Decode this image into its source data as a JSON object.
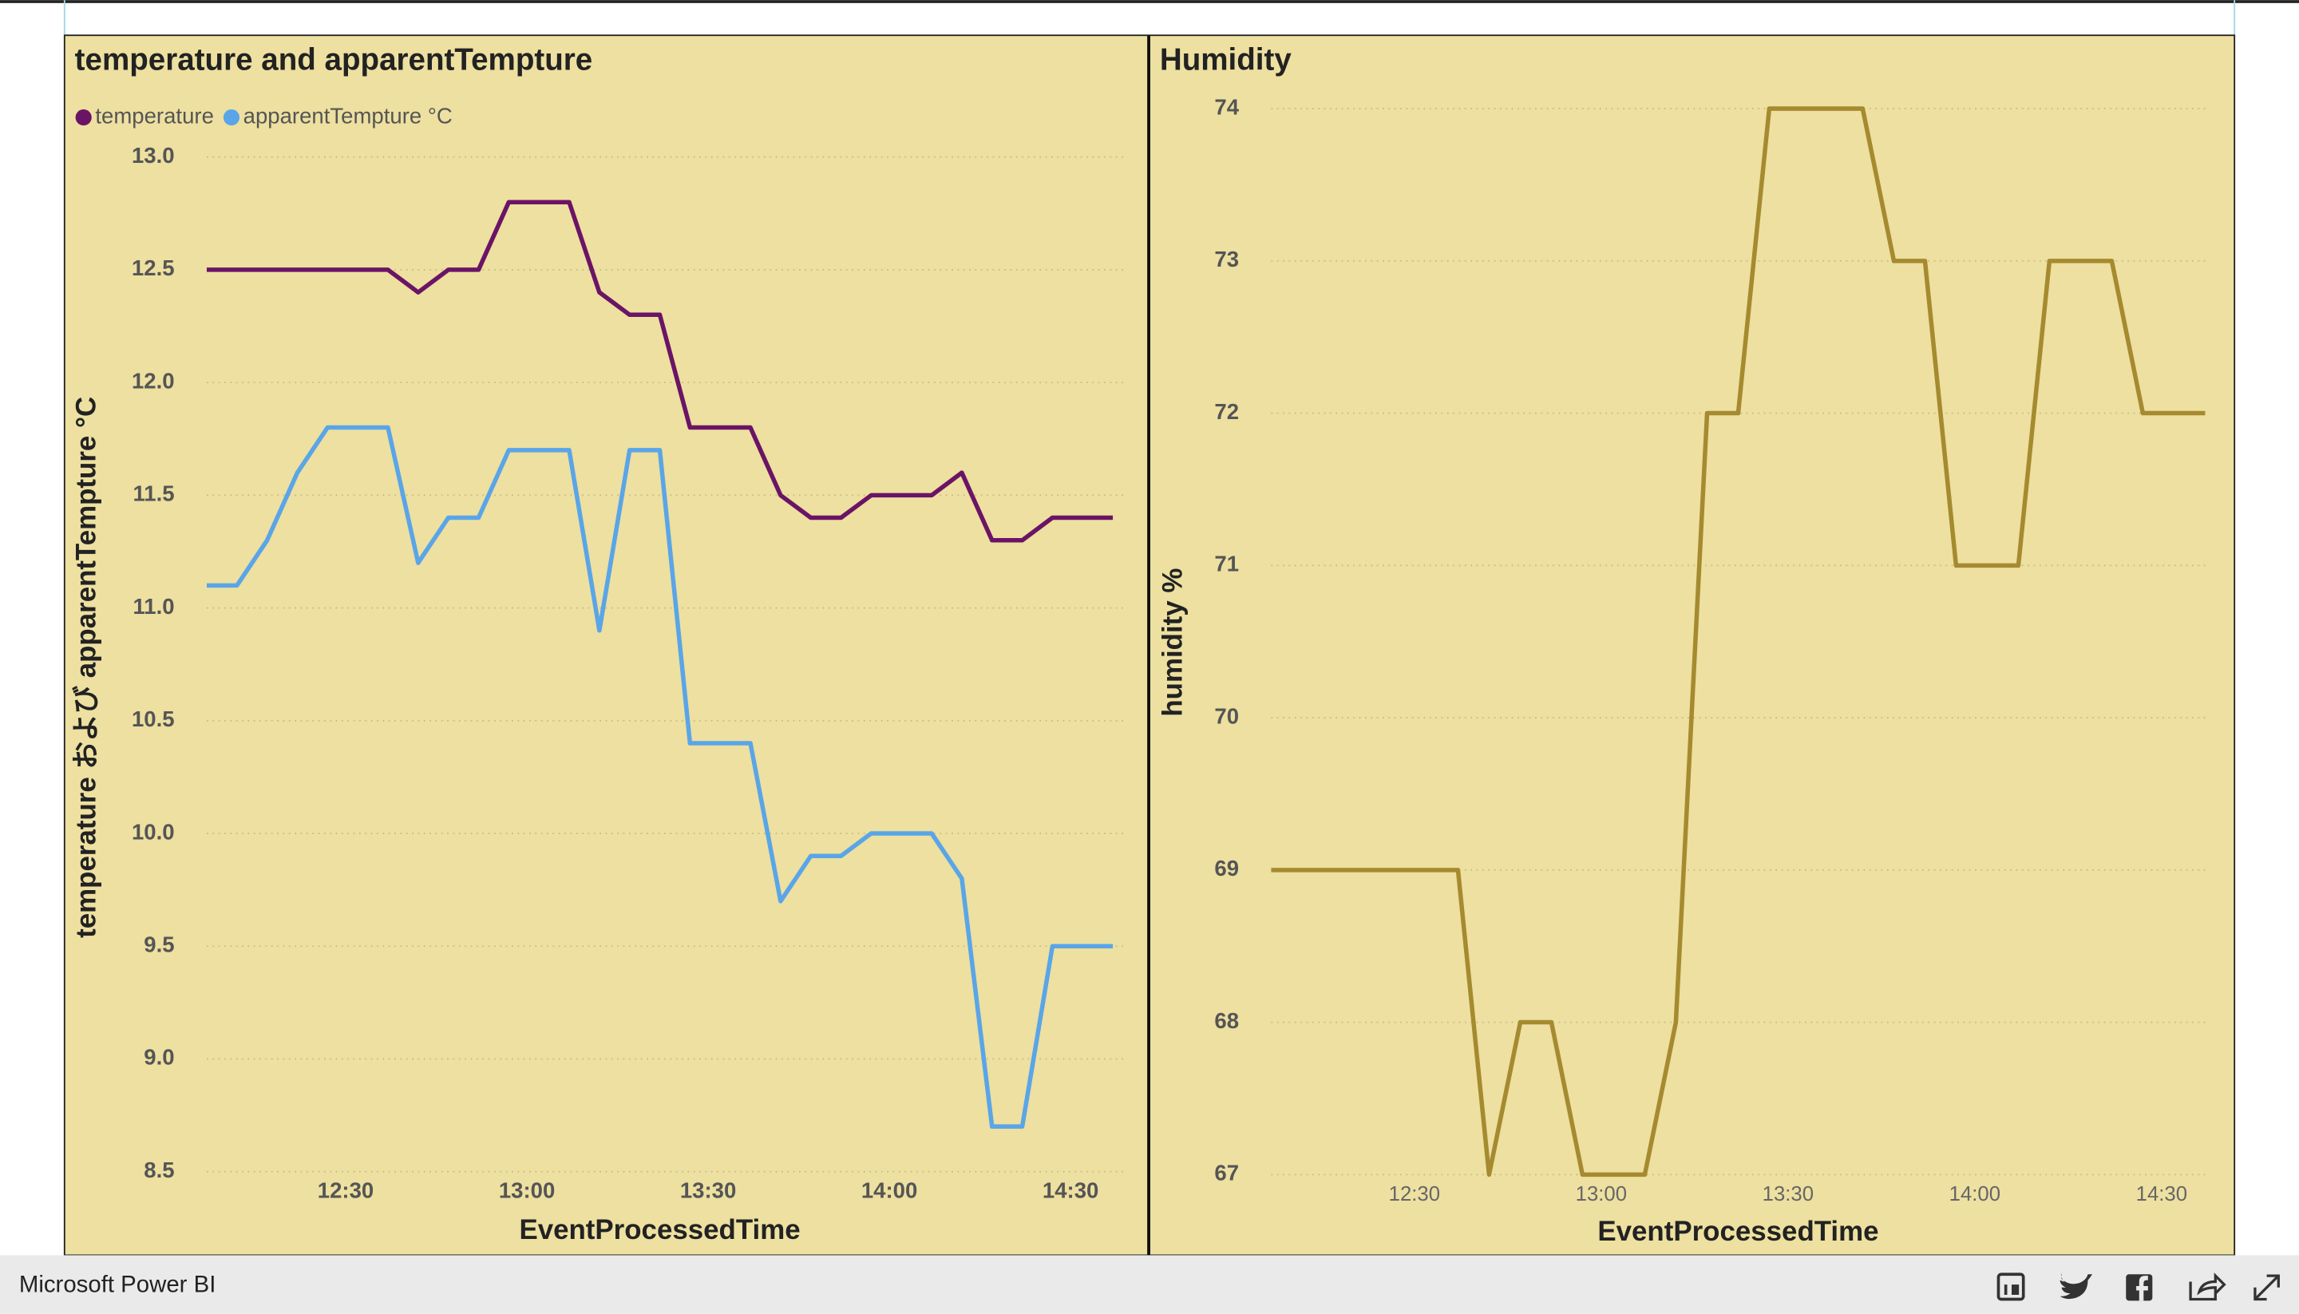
{
  "chart_data": [
    {
      "type": "line",
      "title": "temperature and apparentTempture",
      "x_label": "EventProcessedTime",
      "y_label": "temperature および apparentTempture °C",
      "legend": "top-left",
      "grid": true,
      "x": [
        "12:07",
        "12:12",
        "12:17",
        "12:22",
        "12:27",
        "12:32",
        "12:37",
        "12:42",
        "12:47",
        "12:52",
        "12:57",
        "13:02",
        "13:07",
        "13:12",
        "13:17",
        "13:22",
        "13:27",
        "13:32",
        "13:37",
        "13:42",
        "13:47",
        "13:52",
        "13:57",
        "14:02",
        "14:07",
        "14:12",
        "14:17",
        "14:22",
        "14:27",
        "14:32",
        "14:37"
      ],
      "xlim": [
        "12:07",
        "14:37"
      ],
      "xticks": [
        "12:30",
        "13:00",
        "13:30",
        "14:00",
        "14:30"
      ],
      "ylim": [
        8.5,
        13.0
      ],
      "yticks": [
        {
          "value": 8.5,
          "label": "8.5"
        },
        {
          "value": 9,
          "label": "9.0"
        },
        {
          "value": 9.5,
          "label": "9.5"
        },
        {
          "value": 10,
          "label": "10.0"
        },
        {
          "value": 10.5,
          "label": "10.5"
        },
        {
          "value": 11,
          "label": "11.0"
        },
        {
          "value": 11.5,
          "label": "11.5"
        },
        {
          "value": 12,
          "label": "12.0"
        },
        {
          "value": 12.5,
          "label": "12.5"
        },
        {
          "value": 13,
          "label": "13.0"
        }
      ],
      "series": [
        {
          "name": "temperature",
          "color": "#6b1466",
          "values": [
            12.5,
            12.5,
            12.5,
            12.5,
            12.5,
            12.5,
            12.5,
            12.4,
            12.5,
            12.5,
            12.8,
            12.8,
            12.8,
            12.4,
            12.3,
            12.3,
            11.8,
            11.8,
            11.8,
            11.5,
            11.4,
            11.4,
            11.5,
            11.5,
            11.5,
            11.6,
            11.3,
            11.3,
            11.4,
            11.4,
            11.4
          ]
        },
        {
          "name": "apparentTempture °C",
          "color": "#5aa5e8",
          "values": [
            11.1,
            11.1,
            11.3,
            11.6,
            11.8,
            11.8,
            11.8,
            11.2,
            11.4,
            11.4,
            11.7,
            11.7,
            11.7,
            10.9,
            11.7,
            11.7,
            10.4,
            10.4,
            10.4,
            9.7,
            9.9,
            9.9,
            10.0,
            10.0,
            10.0,
            9.8,
            8.7,
            8.7,
            9.5,
            9.5,
            9.5
          ]
        }
      ]
    },
    {
      "type": "line",
      "title": "Humidity",
      "x_label": "EventProcessedTime",
      "y_label": "humidity %",
      "grid": true,
      "color": "#a68a30",
      "x": [
        "12:07",
        "12:12",
        "12:17",
        "12:22",
        "12:27",
        "12:32",
        "12:37",
        "12:42",
        "12:47",
        "12:52",
        "12:57",
        "13:02",
        "13:07",
        "13:12",
        "13:17",
        "13:22",
        "13:27",
        "13:32",
        "13:37",
        "13:42",
        "13:47",
        "13:52",
        "13:57",
        "14:02",
        "14:07",
        "14:12",
        "14:17",
        "14:22",
        "14:27",
        "14:32",
        "14:37"
      ],
      "xlim": [
        "12:07",
        "14:37"
      ],
      "xticks": [
        "12:30",
        "13:00",
        "13:30",
        "14:00",
        "14:30"
      ],
      "ylim": [
        67,
        74
      ],
      "yticks": [
        67,
        68,
        69,
        70,
        71,
        72,
        73,
        74
      ],
      "values": [
        69,
        69,
        69,
        69,
        69,
        69,
        69,
        67,
        68,
        68,
        67,
        67,
        67,
        68,
        72,
        72,
        74,
        74,
        74,
        74,
        73,
        73,
        71,
        71,
        71,
        73,
        73,
        73,
        72,
        72,
        72
      ]
    }
  ],
  "footer": {
    "brand": "Microsoft Power BI"
  }
}
